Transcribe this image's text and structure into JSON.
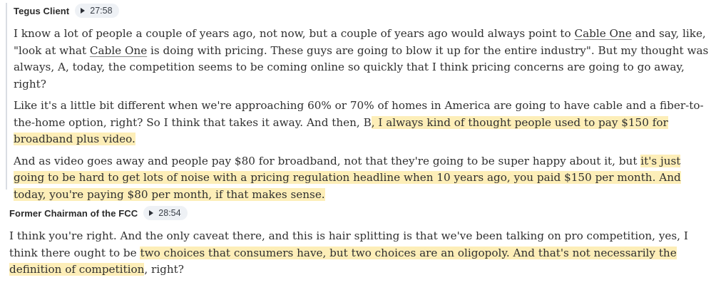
{
  "segments": [
    {
      "speaker": "Tegus Client",
      "timestamp": "27:58",
      "paragraphs": [
        {
          "parts": [
            {
              "text": "I know a lot of people a couple of years ago, not now, but a couple of years ago would always point to "
            },
            {
              "text": "Cable One",
              "entity": true
            },
            {
              "text": " and say, like, \"look at what "
            },
            {
              "text": "Cable One",
              "entity": true
            },
            {
              "text": " is doing with pricing. These guys are going to blow it up for the entire industry\". But my thought was always, A, today, the competition seems to be coming online so quickly that I think pricing concerns are going to go away, right?"
            }
          ]
        },
        {
          "parts": [
            {
              "text": "Like it's a little bit different when we're approaching 60% or 70% of homes in America are going to have cable and a fiber-to-the-home option, right? So I think that takes it away. And then, B"
            },
            {
              "text": ", I always kind of thought people used to pay $150 for broadband plus video.",
              "highlight": true
            }
          ]
        },
        {
          "parts": [
            {
              "text": "And as video goes away and people pay $80 for broadband, not that they're going to be super happy about it, but "
            },
            {
              "text": "it's just going to be hard to get lots of noise with a pricing regulation headline when 10 years ago, you paid $150 per month. And today, you're paying $80 per month, if that makes sense.",
              "highlight": true
            }
          ]
        }
      ]
    },
    {
      "speaker": "Former Chairman of the FCC",
      "timestamp": "28:54",
      "paragraphs": [
        {
          "parts": [
            {
              "text": "I think you're right. And the only caveat there, and this is hair splitting is that we've been talking on pro competition, yes, I think there ought to be "
            },
            {
              "text": "two choices that consumers have, but two choices are an oligopoly. And that's not necessarily the definition of competition",
              "highlight": true
            },
            {
              "text": ", right?"
            }
          ]
        }
      ]
    }
  ]
}
